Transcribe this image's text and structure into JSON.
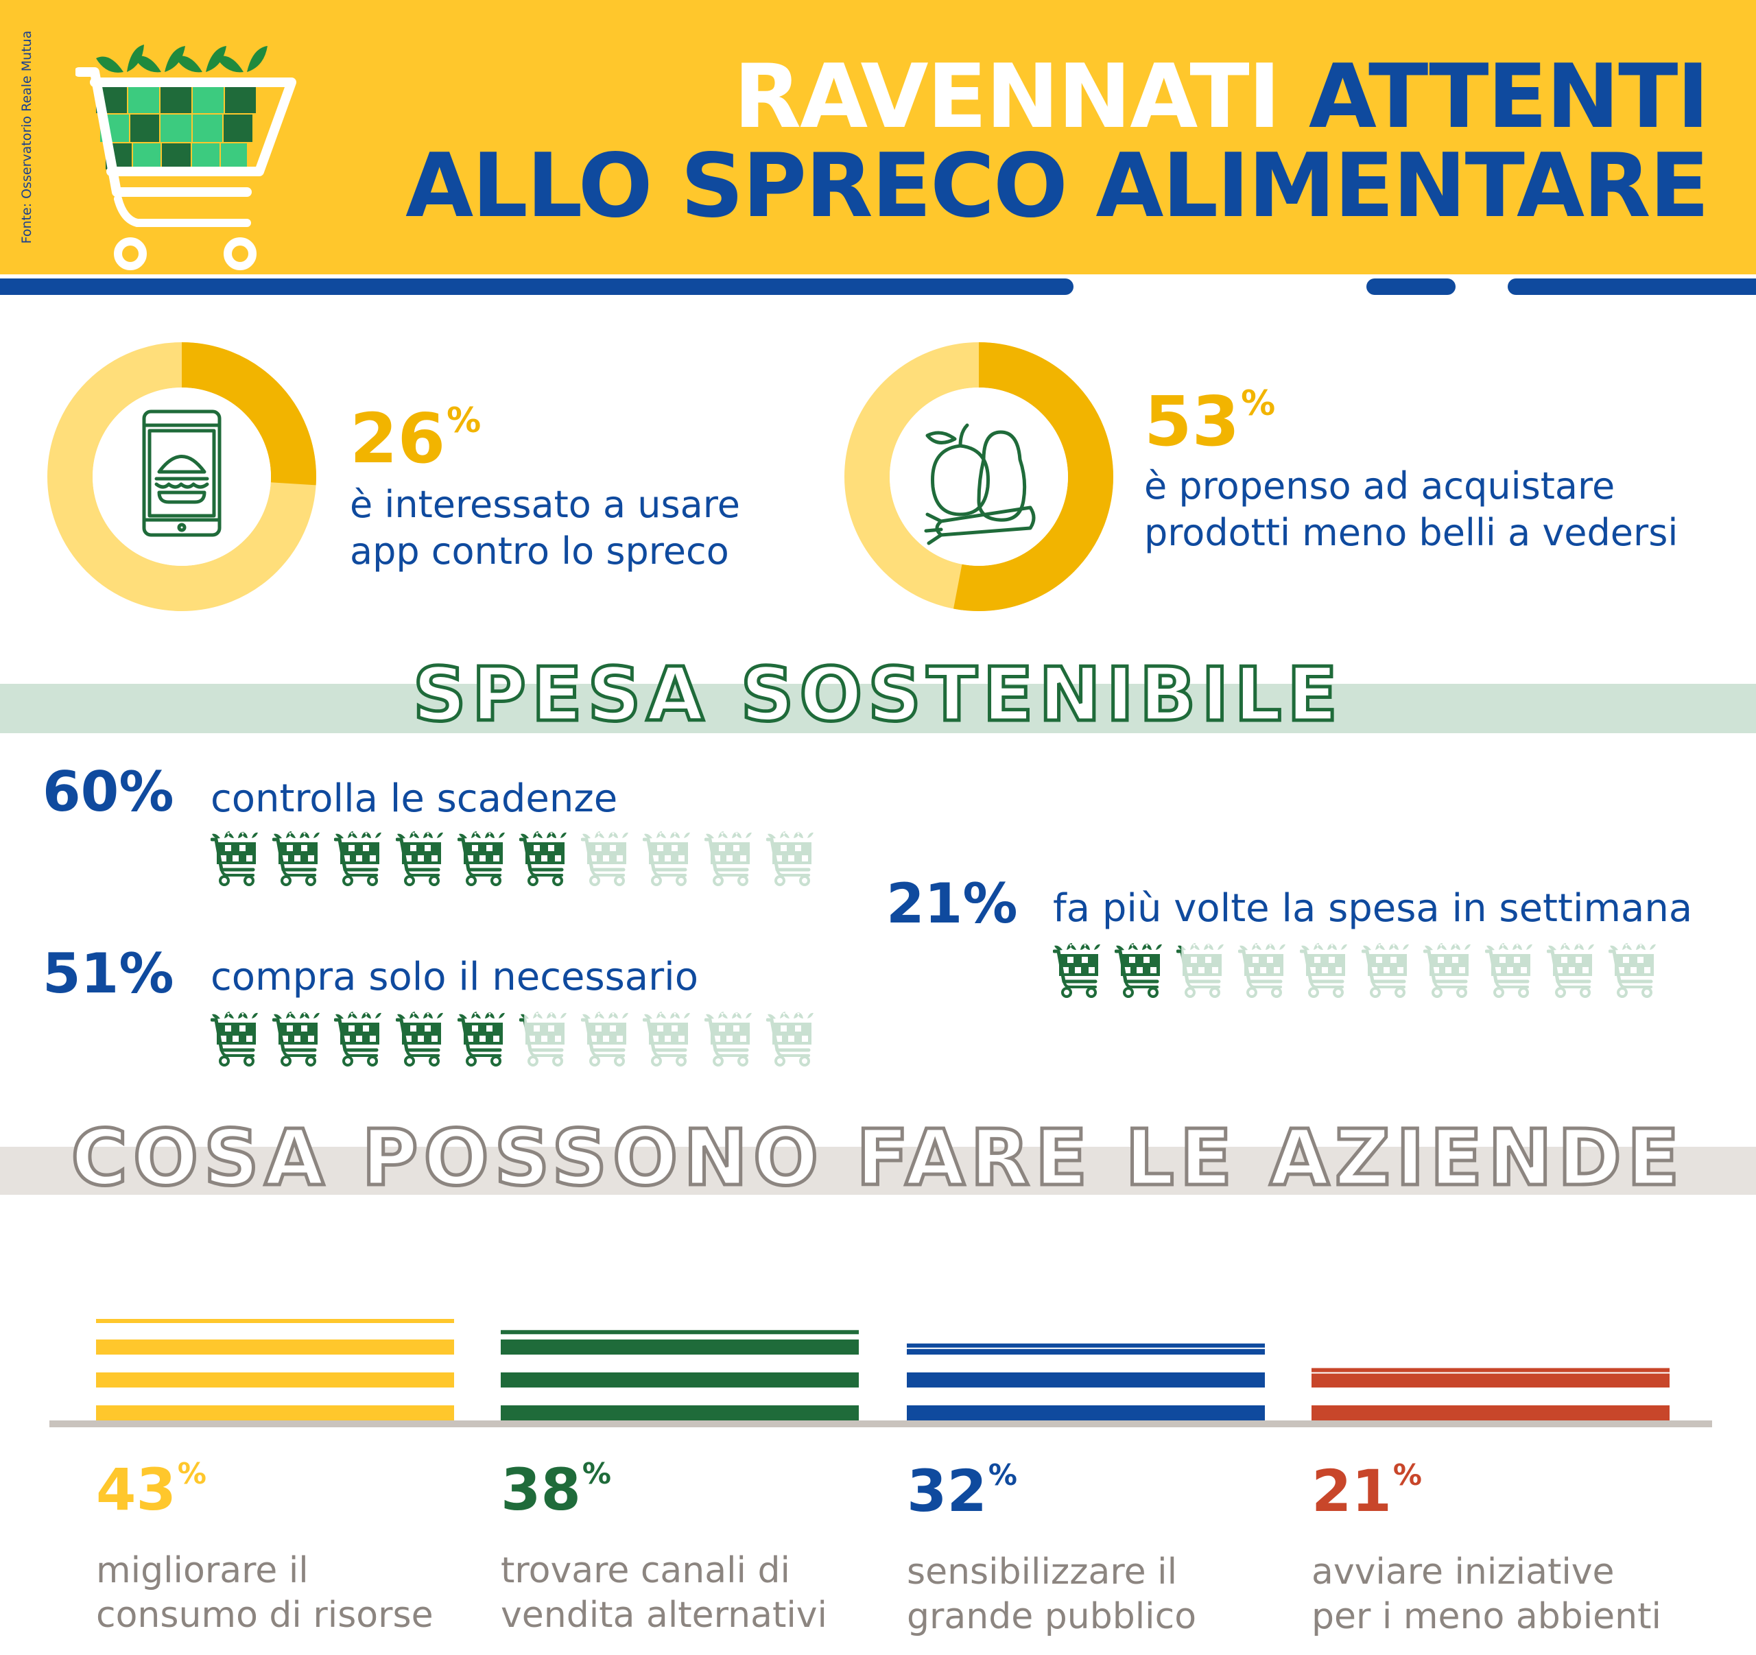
{
  "header": {
    "title_line1_part1": "RAVENNATI",
    "title_line1_part2": "ATTENTI",
    "title_line2": "ALLO SPRECO ALIMENTARE",
    "source": "Fonte: Osservatorio Reale Mutua",
    "icon": "shopping-cart-icon"
  },
  "colors": {
    "yellow": "#FFC72C",
    "blue": "#0F4A9E",
    "green": "#1F6B3A",
    "red": "#C8462A",
    "grey": "#8C8580",
    "donut_light": "#FFDE7A",
    "donut_dark": "#F2B400"
  },
  "donuts": [
    {
      "value": "26",
      "unit": "%",
      "line1": "è interessato a usare",
      "line2": "app contro lo spreco",
      "icon": "smartphone-burger-icon",
      "fraction": 0.26
    },
    {
      "value": "53",
      "unit": "%",
      "line1": "è propenso ad acquistare",
      "line2": "prodotti meno belli a vedersi",
      "icon": "fruit-vegetables-icon",
      "fraction": 0.53
    }
  ],
  "spesa": {
    "title": "SPESA SOSTENIBILE",
    "items": [
      {
        "value": "60%",
        "label": "controlla le scadenze",
        "fraction": 0.6,
        "icon": "cart-icon"
      },
      {
        "value": "51%",
        "label": "compra solo il necessario",
        "fraction": 0.51,
        "icon": "cart-icon"
      },
      {
        "value": "21%",
        "label": "fa più volte la spesa in settimana",
        "fraction": 0.21,
        "icon": "cart-icon"
      }
    ]
  },
  "aziende": {
    "title": "COSA POSSONO FARE LE AZIENDE"
  },
  "chart_data": {
    "type": "bar",
    "categories": [
      "migliorare il consumo di risorse",
      "trovare canali di vendita alternativi",
      "sensibilizzare il grande pubblico",
      "avviare iniziative per i meno abbienti"
    ],
    "values": [
      43,
      38,
      32,
      21
    ],
    "unit": "%",
    "labels": [
      {
        "value": "43",
        "unit": "%",
        "line1": "migliorare il",
        "line2": "consumo di risorse",
        "color": "#FFC72C"
      },
      {
        "value": "38",
        "unit": "%",
        "line1": "trovare canali di",
        "line2": "vendita alternativi",
        "color": "#1F6B3A"
      },
      {
        "value": "32",
        "unit": "%",
        "line1": "sensibilizzare il",
        "line2": "grande pubblico",
        "color": "#0F4A9E"
      },
      {
        "value": "21",
        "unit": "%",
        "line1": "avviare iniziative",
        "line2": "per i meno abbienti",
        "color": "#C8462A"
      }
    ]
  }
}
